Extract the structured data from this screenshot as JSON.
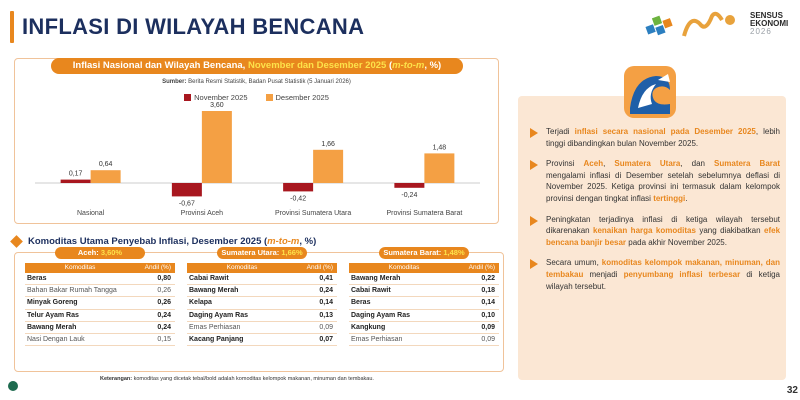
{
  "header": {
    "title": "INFLASI DI WILAYAH BENCANA",
    "logo_line1": "SENSUS",
    "logo_line2": "EKONOMI",
    "logo_year": "2026"
  },
  "chart_title": {
    "prefix": "Inflasi Nasional dan Wilayah Bencana, ",
    "highlight": "November dan Desember 2025",
    "unit_open": " (",
    "unit": "m-to-m",
    "unit_close": ", %)"
  },
  "source": {
    "label": "Sumber:",
    "text": " Berita Resmi Statistik, Badan Pusat Statistik (5 Januari 2026)"
  },
  "chart_data": {
    "type": "bar",
    "categories": [
      "Nasional",
      "Provinsi Aceh",
      "Provinsi Sumatera Utara",
      "Provinsi Sumatera Barat"
    ],
    "series": [
      {
        "name": "November 2025",
        "values": [
          0.17,
          -0.67,
          -0.42,
          -0.24
        ],
        "labels": [
          "0,17",
          "-0,67",
          "-0,42",
          "-0,24"
        ],
        "color": "#a8171f"
      },
      {
        "name": "Desember 2025",
        "values": [
          0.64,
          3.6,
          1.66,
          1.48
        ],
        "labels": [
          "0,64",
          "3,60",
          "1,66",
          "1,48"
        ],
        "color": "#f4a044"
      }
    ],
    "ylim": [
      -0.8,
      3.8
    ],
    "grid": false,
    "legend": "top-center"
  },
  "commodities": {
    "title": "Komoditas Utama Penyebab Inflasi, Desember 2025 (",
    "title_unit": "m-to-m",
    "title_close": ", %)",
    "col_komoditas": "Komoditas",
    "col_andil": "Andil (%)",
    "tables": [
      {
        "region": "Aceh: ",
        "value": "3,60%",
        "rows": [
          {
            "name": "Beras",
            "andil": "0,80",
            "bold": true
          },
          {
            "name": "Bahan Bakar Rumah Tangga",
            "andil": "0,26",
            "bold": false
          },
          {
            "name": "Minyak Goreng",
            "andil": "0,26",
            "bold": true
          },
          {
            "name": "Telur Ayam Ras",
            "andil": "0,24",
            "bold": true
          },
          {
            "name": "Bawang Merah",
            "andil": "0,24",
            "bold": true
          },
          {
            "name": "Nasi Dengan Lauk",
            "andil": "0,15",
            "bold": false
          }
        ]
      },
      {
        "region": "Sumatera Utara: ",
        "value": "1,66%",
        "rows": [
          {
            "name": "Cabai Rawit",
            "andil": "0,41",
            "bold": true
          },
          {
            "name": "Bawang Merah",
            "andil": "0,24",
            "bold": true
          },
          {
            "name": "Kelapa",
            "andil": "0,14",
            "bold": true
          },
          {
            "name": "Daging Ayam Ras",
            "andil": "0,13",
            "bold": true
          },
          {
            "name": "Emas Perhiasan",
            "andil": "0,09",
            "bold": false
          },
          {
            "name": "Kacang Panjang",
            "andil": "0,07",
            "bold": true
          }
        ]
      },
      {
        "region": "Sumatera Barat: ",
        "value": "1,48%",
        "rows": [
          {
            "name": "Bawang Merah",
            "andil": "0,22",
            "bold": true
          },
          {
            "name": "Cabai Rawit",
            "andil": "0,18",
            "bold": true
          },
          {
            "name": "Beras",
            "andil": "0,14",
            "bold": true
          },
          {
            "name": "Daging Ayam Ras",
            "andil": "0,10",
            "bold": true
          },
          {
            "name": "Kangkung",
            "andil": "0,09",
            "bold": true
          },
          {
            "name": "Emas Perhiasan",
            "andil": "0,09",
            "bold": false
          }
        ]
      }
    ],
    "note_label": "Keterangan:",
    "note_text": " komoditas yang dicetak tebal/bold adalah komoditas kelompok makanan, minuman dan tembakau."
  },
  "bullets": [
    [
      {
        "t": "Terjadi ",
        "o": false
      },
      {
        "t": "inflasi secara nasional pada Desember 2025",
        "o": true
      },
      {
        "t": ", lebih tinggi dibandingkan bulan November 2025.",
        "o": false
      }
    ],
    [
      {
        "t": "Provinsi ",
        "o": false
      },
      {
        "t": "Aceh",
        "o": true
      },
      {
        "t": ", ",
        "o": false
      },
      {
        "t": "Sumatera Utara",
        "o": true
      },
      {
        "t": ", dan ",
        "o": false
      },
      {
        "t": "Sumatera Barat",
        "o": true
      },
      {
        "t": " mengalami inflasi di Desember setelah sebelumnya deflasi di November 2025. Ketiga provinsi ini termasuk dalam kelompok provinsi dengan tingkat inflasi ",
        "o": false
      },
      {
        "t": "tertinggi",
        "o": true
      },
      {
        "t": ".",
        "o": false
      }
    ],
    [
      {
        "t": "Peningkatan terjadinya inflasi di ketiga wilayah tersebut dikarenakan ",
        "o": false
      },
      {
        "t": "kenaikan harga komoditas",
        "o": true
      },
      {
        "t": " yang diakibatkan ",
        "o": false
      },
      {
        "t": "efek bencana banjir besar",
        "o": true
      },
      {
        "t": " pada akhir November 2025.",
        "o": false
      }
    ],
    [
      {
        "t": "Secara umum, ",
        "o": false
      },
      {
        "t": "komoditas kelompok makanan, minuman, dan tembakau",
        "o": true
      },
      {
        "t": " menjadi ",
        "o": false
      },
      {
        "t": "penyumbang inflasi terbesar",
        "o": true
      },
      {
        "t": " di ketiga wilayah tersebut.",
        "o": false
      }
    ]
  ],
  "page_number": "32",
  "colors": {
    "accent": "#e8871e",
    "navy": "#1c2f5e",
    "panel": "#fbe7d4"
  },
  "icons": [
    "bps-logo-icon",
    "wave-icon",
    "page-icon"
  ]
}
